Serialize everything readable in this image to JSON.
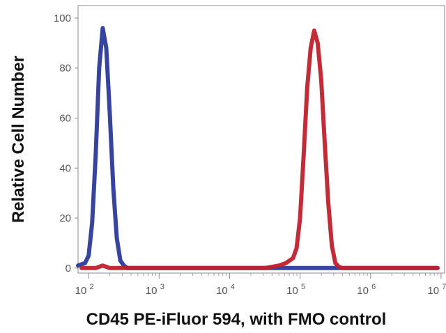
{
  "chart_data": {
    "type": "line",
    "title": "",
    "xlabel": "CD45 PE-iFluor 594, with FMO control",
    "ylabel": "Relative Cell Number",
    "x_scale": "log",
    "xlim": [
      1.85,
      7.05
    ],
    "ylim": [
      -2,
      105
    ],
    "x_ticks": [
      {
        "base": "10",
        "exp": "2",
        "value": 2
      },
      {
        "base": "10",
        "exp": "3",
        "value": 3
      },
      {
        "base": "10",
        "exp": "4",
        "value": 4
      },
      {
        "base": "10",
        "exp": "5",
        "value": 5
      },
      {
        "base": "10",
        "exp": "6",
        "value": 6
      },
      {
        "base": "10",
        "exp": "7",
        "value": 7
      }
    ],
    "y_ticks": [
      "0",
      "20",
      "40",
      "60",
      "80",
      "100"
    ],
    "grid": false,
    "series": [
      {
        "color": "#2b3a9a",
        "x": [
          1.85,
          1.95,
          2.0,
          2.05,
          2.1,
          2.15,
          2.2,
          2.25,
          2.3,
          2.35,
          2.4,
          2.45,
          2.5,
          2.55,
          2.6,
          2.7,
          2.8,
          4.0,
          6.95
        ],
        "y": [
          1,
          2,
          5,
          18,
          45,
          80,
          96,
          88,
          62,
          32,
          12,
          3,
          1,
          0,
          0,
          0,
          0,
          0,
          0
        ]
      },
      {
        "color": "#c0202c",
        "x": [
          1.9,
          2.1,
          2.2,
          2.3,
          2.5,
          3.0,
          4.0,
          4.5,
          4.7,
          4.8,
          4.9,
          4.95,
          5.0,
          5.05,
          5.1,
          5.15,
          5.2,
          5.25,
          5.3,
          5.35,
          5.4,
          5.45,
          5.5,
          5.55,
          5.6,
          5.7,
          6.0,
          6.95
        ],
        "y": [
          0,
          0,
          1,
          0,
          0,
          0,
          0,
          0,
          1,
          2,
          4,
          8,
          20,
          45,
          72,
          88,
          95,
          90,
          75,
          50,
          26,
          9,
          2,
          0.5,
          0,
          0,
          0,
          0
        ]
      }
    ]
  }
}
